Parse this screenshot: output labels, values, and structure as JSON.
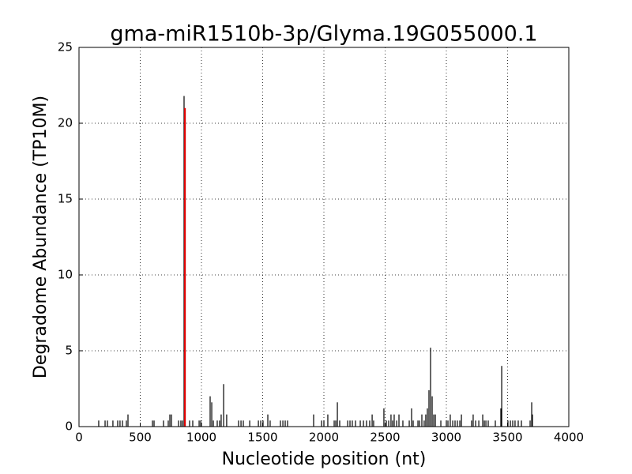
{
  "chart_data": {
    "type": "stem",
    "title": "gma-miR1510b-3p/Glyma.19G055000.1",
    "x_label": "Nucleotide position (nt)",
    "y_label": "Degradome Abundance (TP10M)",
    "xlim": [
      0,
      4000
    ],
    "xticks": [
      0,
      500,
      1000,
      1500,
      2000,
      2500,
      3000,
      3500,
      4000
    ],
    "ylim": [
      0,
      25
    ],
    "yticks": [
      0,
      5,
      10,
      15,
      20,
      25
    ],
    "grid": true,
    "series": [
      {
        "color": "#000000",
        "x": [
          161,
          213,
          232,
          277,
          316,
          335,
          355,
          387,
          400,
          600,
          613,
          690,
          729,
          742,
          755,
          813,
          832,
          845,
          858,
          903,
          929,
          981,
          994,
          1071,
          1084,
          1097,
          1129,
          1148,
          1161,
          1181,
          1206,
          1303,
          1323,
          1342,
          1394,
          1465,
          1484,
          1503,
          1542,
          1561,
          1645,
          1665,
          1684,
          1703,
          1916,
          1981,
          2000,
          2032,
          2084,
          2097,
          2110,
          2129,
          2194,
          2213,
          2232,
          2258,
          2297,
          2323,
          2348,
          2374,
          2394,
          2406,
          2490,
          2510,
          2529,
          2548,
          2561,
          2574,
          2594,
          2613,
          2645,
          2697,
          2716,
          2729,
          2768,
          2781,
          2800,
          2819,
          2832,
          2845,
          2858,
          2871,
          2884,
          2897,
          2910,
          2955,
          3000,
          3013,
          3032,
          3052,
          3071,
          3090,
          3110,
          3123,
          3206,
          3219,
          3239,
          3265,
          3297,
          3310,
          3323,
          3342,
          3400,
          3445,
          3452,
          3503,
          3523,
          3542,
          3561,
          3587,
          3613,
          3684,
          3697,
          3703
        ],
        "values": [
          0.4,
          0.4,
          0.4,
          0.4,
          0.4,
          0.4,
          0.4,
          0.4,
          0.8,
          0.4,
          0.4,
          0.4,
          0.4,
          0.8,
          0.8,
          0.4,
          0.4,
          0.4,
          21.8,
          0.4,
          0.4,
          0.4,
          0.4,
          2.0,
          1.6,
          0.4,
          0.4,
          0.4,
          0.8,
          2.8,
          0.8,
          0.4,
          0.4,
          0.4,
          0.4,
          0.4,
          0.4,
          0.4,
          0.8,
          0.4,
          0.4,
          0.4,
          0.4,
          0.4,
          0.8,
          0.4,
          0.4,
          0.8,
          0.4,
          0.4,
          1.6,
          0.4,
          0.4,
          0.4,
          0.4,
          0.4,
          0.4,
          0.4,
          0.4,
          0.4,
          0.8,
          0.4,
          1.2,
          0.4,
          0.4,
          0.8,
          0.4,
          0.8,
          0.4,
          0.8,
          0.4,
          0.4,
          1.2,
          0.4,
          0.4,
          0.4,
          0.8,
          0.4,
          0.8,
          1.2,
          2.4,
          5.2,
          2.0,
          0.8,
          0.8,
          0.4,
          0.4,
          0.4,
          0.8,
          0.4,
          0.4,
          0.4,
          0.4,
          0.8,
          0.4,
          0.8,
          0.4,
          0.4,
          0.8,
          0.4,
          0.4,
          0.4,
          0.4,
          1.2,
          4.0,
          0.4,
          0.4,
          0.4,
          0.4,
          0.4,
          0.4,
          0.4,
          1.6,
          0.8
        ]
      },
      {
        "color": "#dd0000",
        "x": [
          865
        ],
        "values": [
          21.0
        ]
      }
    ]
  }
}
